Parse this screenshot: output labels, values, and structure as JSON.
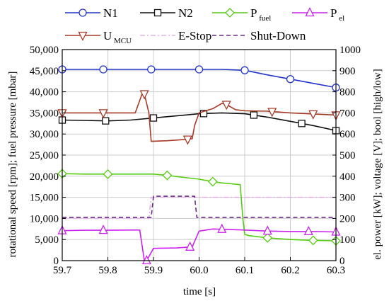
{
  "chart_data": {
    "type": "line",
    "title": "",
    "xlabel": "time [s]",
    "ylabel_left": "rotational speed [rpm]; fuel pressure [mbar]",
    "ylabel_right": "el. power [kW]; voltage [V]; bool [high/low]",
    "xlim": [
      59.7,
      60.3
    ],
    "ylim_left": [
      0,
      50000
    ],
    "ylim_right": [
      0,
      1000
    ],
    "x_ticks": [
      "59.7",
      "59.8",
      "59.9",
      "60.0",
      "60.1",
      "60.2",
      "60.3"
    ],
    "y_left_ticks": [
      "0",
      "5,000",
      "10,000",
      "15,000",
      "20,000",
      "25,000",
      "30,000",
      "35,000",
      "40,000",
      "45,000",
      "50,000"
    ],
    "y_right_ticks": [
      "0",
      "100",
      "200",
      "300",
      "400",
      "500",
      "600",
      "700",
      "800",
      "900",
      "1000"
    ],
    "grid": true,
    "legend_position": "top",
    "series": [
      {
        "key": "N1",
        "name": "N1",
        "name_sub": "",
        "axis": "left",
        "color": "#2233cc",
        "marker": "circle",
        "dash": "",
        "x": [
          59.7,
          59.8,
          59.9,
          60.0,
          60.05,
          60.1,
          60.15,
          60.2,
          60.25,
          60.3
        ],
        "y": [
          45300,
          45300,
          45300,
          45300,
          45300,
          45100,
          44000,
          43000,
          42000,
          41000
        ],
        "marker_x": [
          59.7,
          59.79,
          59.895,
          60.0,
          60.1,
          60.2,
          60.3
        ]
      },
      {
        "key": "N2",
        "name": "N2",
        "name_sub": "",
        "axis": "left",
        "color": "#111111",
        "marker": "square",
        "dash": "",
        "x": [
          59.7,
          59.8,
          59.85,
          59.9,
          59.95,
          60.0,
          60.05,
          60.1,
          60.15,
          60.2,
          60.25,
          60.3
        ],
        "y": [
          33300,
          33100,
          33300,
          33800,
          34300,
          34800,
          35000,
          34800,
          34000,
          33000,
          32000,
          30800
        ],
        "marker_x": [
          59.7,
          59.795,
          59.9,
          60.01,
          60.12,
          60.225,
          60.3
        ]
      },
      {
        "key": "Pfuel",
        "name": "P",
        "name_sub": "fuel",
        "axis": "left",
        "color": "#55cc11",
        "marker": "diamond",
        "dash": "",
        "x": [
          59.7,
          59.75,
          59.8,
          59.85,
          59.9,
          59.93,
          59.96,
          60.0,
          60.03,
          60.05,
          60.07,
          60.09,
          60.096,
          60.1,
          60.11,
          60.15,
          60.2,
          60.25,
          60.3
        ],
        "y": [
          20600,
          20500,
          20500,
          20500,
          20500,
          20200,
          19800,
          19300,
          18700,
          18400,
          18200,
          18000,
          10000,
          6200,
          5900,
          5400,
          5000,
          4800,
          4700
        ],
        "marker_x": [
          59.7,
          59.8,
          59.93,
          60.03,
          60.15,
          60.25,
          60.3
        ]
      },
      {
        "key": "Pel",
        "name": "P",
        "name_sub": "el",
        "axis": "right",
        "color": "#cc22ee",
        "marker": "triangle-up",
        "dash": "",
        "x": [
          59.7,
          59.75,
          59.8,
          59.85,
          59.87,
          59.88,
          59.885,
          59.9,
          59.95,
          59.97,
          59.985,
          60.0,
          60.03,
          60.06,
          60.1,
          60.15,
          60.2,
          60.25,
          60.3
        ],
        "y": [
          142,
          144,
          144,
          145,
          145,
          0,
          0,
          58,
          60,
          63,
          65,
          140,
          150,
          148,
          145,
          140,
          138,
          138,
          136
        ],
        "marker_x": [
          59.7,
          59.79,
          59.885,
          59.98,
          60.05,
          60.15,
          60.24,
          60.3
        ]
      },
      {
        "key": "Umcu",
        "name": "U",
        "name_sub": "MCU",
        "axis": "right",
        "color": "#a83a28",
        "marker": "triangle-down",
        "dash": "",
        "x": [
          59.7,
          59.8,
          59.86,
          59.875,
          59.88,
          59.89,
          59.895,
          59.93,
          59.975,
          59.985,
          59.99,
          60.0,
          60.03,
          60.05,
          60.06,
          60.08,
          60.1,
          60.15,
          60.2,
          60.25,
          60.3
        ],
        "y": [
          700,
          700,
          700,
          790,
          790,
          700,
          565,
          568,
          575,
          578,
          640,
          700,
          720,
          745,
          740,
          715,
          710,
          708,
          700,
          695,
          690
        ],
        "marker_x": [
          59.7,
          59.79,
          59.88,
          59.975,
          60.06,
          60.16,
          60.25,
          60.3
        ]
      },
      {
        "key": "Estop",
        "name": "E-Stop",
        "name_sub": "",
        "axis": "right",
        "color": "#e4b4e4",
        "marker": "none",
        "dash": "7,3,2,3",
        "x": [
          59.7,
          59.89,
          59.895,
          60.3
        ],
        "y": [
          200,
          200,
          300,
          300
        ]
      },
      {
        "key": "Shutdown",
        "name": "Shut-Down",
        "name_sub": "",
        "axis": "right",
        "color": "#6a2a8a",
        "marker": "none",
        "dash": "6,4",
        "x": [
          59.7,
          59.895,
          59.9,
          59.99,
          59.995,
          60.3
        ],
        "y": [
          205,
          205,
          305,
          305,
          205,
          205
        ]
      }
    ]
  }
}
